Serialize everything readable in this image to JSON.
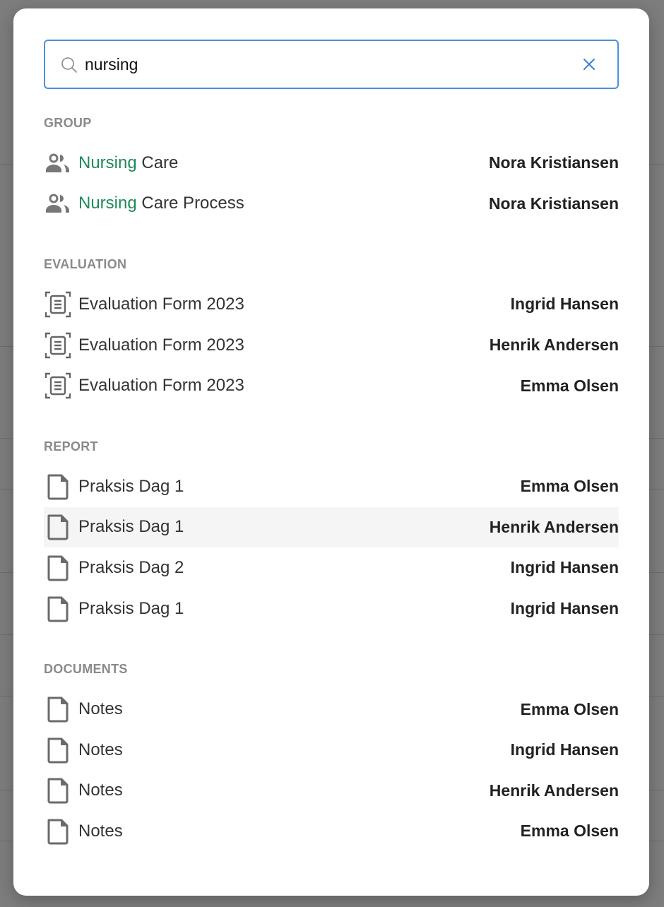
{
  "search": {
    "value": "nursing",
    "query_match": "Nursing",
    "accent_color": "#4a8fe0",
    "match_color": "#1e8a5a"
  },
  "sections": [
    {
      "label": "GROUP",
      "icon": "group-icon",
      "items": [
        {
          "match": "Nursing",
          "rest": " Care",
          "owner": "Nora Kristiansen"
        },
        {
          "match": "Nursing",
          "rest": " Care Process",
          "owner": "Nora Kristiansen"
        }
      ]
    },
    {
      "label": "EVALUATION",
      "icon": "evaluation-form-icon",
      "items": [
        {
          "match": "",
          "rest": "Evaluation Form 2023",
          "owner": "Ingrid Hansen"
        },
        {
          "match": "",
          "rest": "Evaluation Form 2023",
          "owner": "Henrik Andersen"
        },
        {
          "match": "",
          "rest": "Evaluation Form 2023",
          "owner": "Emma Olsen"
        }
      ]
    },
    {
      "label": "REPORT",
      "icon": "document-icon",
      "items": [
        {
          "match": "",
          "rest": "Praksis Dag 1",
          "owner": "Emma Olsen"
        },
        {
          "match": "",
          "rest": "Praksis Dag 1",
          "owner": "Henrik Andersen",
          "highlighted": true
        },
        {
          "match": "",
          "rest": "Praksis Dag 2",
          "owner": "Ingrid Hansen"
        },
        {
          "match": "",
          "rest": "Praksis Dag 1",
          "owner": "Ingrid Hansen"
        }
      ]
    },
    {
      "label": "DOCUMENTS",
      "icon": "document-icon",
      "items": [
        {
          "match": "",
          "rest": "Notes",
          "owner": "Emma Olsen"
        },
        {
          "match": "",
          "rest": "Notes",
          "owner": "Ingrid Hansen"
        },
        {
          "match": "",
          "rest": "Notes",
          "owner": "Henrik Andersen"
        },
        {
          "match": "",
          "rest": "Notes",
          "owner": "Emma Olsen"
        }
      ]
    }
  ]
}
